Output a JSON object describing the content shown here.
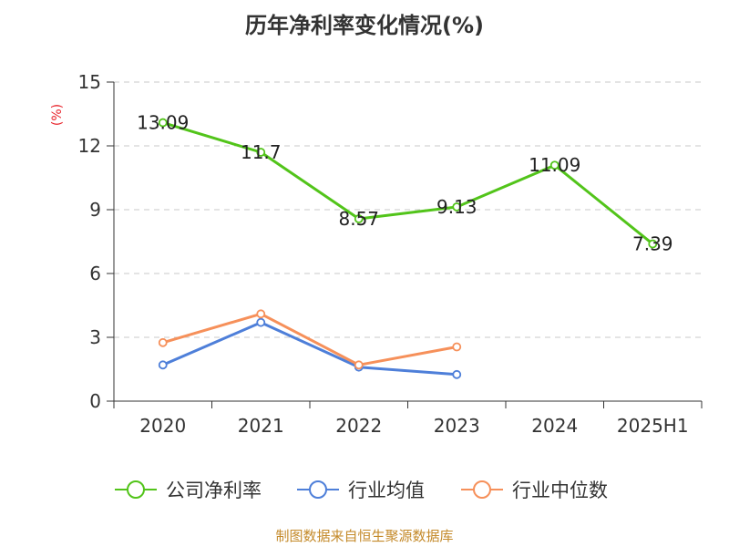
{
  "chart_data": {
    "type": "line",
    "title": "历年净利率变化情况(%)",
    "ylabel": "(%)",
    "xlabel": "",
    "categories": [
      "2020",
      "2021",
      "2022",
      "2023",
      "2024",
      "2025H1"
    ],
    "ylim": [
      0,
      15
    ],
    "yticks": [
      0,
      3,
      6,
      9,
      12,
      15
    ],
    "grid": true,
    "legend_position": "bottom",
    "series": [
      {
        "name": "公司净利率",
        "color": "#52c41a",
        "values": [
          13.09,
          11.7,
          8.57,
          9.13,
          11.09,
          7.39
        ],
        "labels": [
          "13.09",
          "11.7",
          "8.57",
          "9.13",
          "11.09",
          "7.39"
        ]
      },
      {
        "name": "行业均值",
        "color": "#4e7fd9",
        "values": [
          1.7,
          3.7,
          1.6,
          1.25,
          null,
          null
        ]
      },
      {
        "name": "行业中位数",
        "color": "#f6905a",
        "values": [
          2.75,
          4.1,
          1.7,
          2.55,
          null,
          null
        ]
      }
    ]
  },
  "source": "制图数据来自恒生聚源数据库"
}
